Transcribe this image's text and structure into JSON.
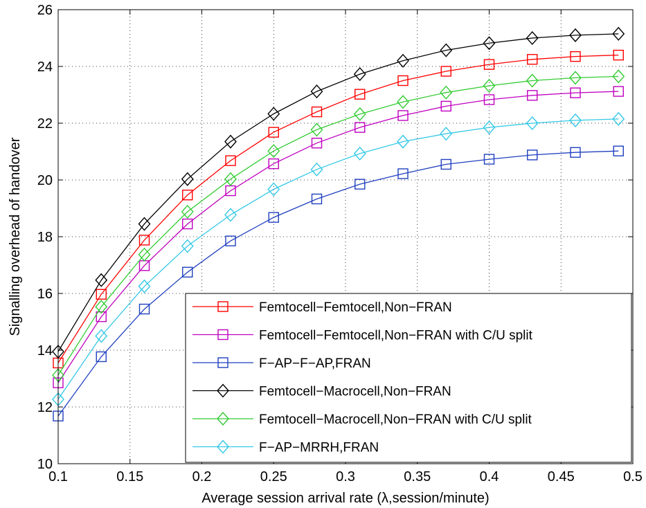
{
  "chart_data": {
    "type": "line",
    "title": "",
    "xlabel": "Average session arrival rate (λ,session/minute)",
    "ylabel": "Signalling overhead of handover",
    "xlim": [
      0.1,
      0.5
    ],
    "ylim": [
      10,
      26
    ],
    "xticks": [
      0.1,
      0.15,
      0.2,
      0.25,
      0.3,
      0.35,
      0.4,
      0.45,
      0.5
    ],
    "xtick_labels": [
      "0.1",
      "0.15",
      "0.2",
      "0.25",
      "0.3",
      "0.35",
      "0.4",
      "0.45",
      "0.5"
    ],
    "yticks": [
      10,
      12,
      14,
      16,
      18,
      20,
      22,
      24,
      26
    ],
    "ytick_labels": [
      "10",
      "12",
      "14",
      "16",
      "18",
      "20",
      "22",
      "24",
      "26"
    ],
    "grid": true,
    "legend_position": "bottom-right",
    "x": [
      0.1,
      0.13,
      0.16,
      0.19,
      0.22,
      0.25,
      0.28,
      0.31,
      0.34,
      0.37,
      0.4,
      0.43,
      0.46,
      0.49
    ],
    "series": [
      {
        "name": "Femtocell−Femtocell,Non−FRAN",
        "color": "#ff0000",
        "marker": "square",
        "values": [
          13.55,
          15.97,
          17.88,
          19.47,
          20.68,
          21.68,
          22.4,
          23.02,
          23.5,
          23.83,
          24.07,
          24.25,
          24.35,
          24.4
        ]
      },
      {
        "name": "Femtocell−Femtocell,Non−FRAN with C/U split",
        "color": "#bf00bf",
        "marker": "square",
        "values": [
          12.85,
          15.18,
          16.98,
          18.45,
          19.62,
          20.57,
          21.3,
          21.85,
          22.27,
          22.6,
          22.83,
          22.98,
          23.07,
          23.12
        ]
      },
      {
        "name": "F−AP−F−AP,FRAN",
        "color": "#1f3fbf",
        "marker": "square",
        "values": [
          11.68,
          13.77,
          15.45,
          16.75,
          17.85,
          18.68,
          19.33,
          19.85,
          20.22,
          20.55,
          20.73,
          20.88,
          20.97,
          21.02
        ]
      },
      {
        "name": "Femtocell−Macrocell,Non−FRAN",
        "color": "#000000",
        "marker": "diamond",
        "values": [
          13.95,
          16.47,
          18.45,
          20.03,
          21.35,
          22.33,
          23.12,
          23.73,
          24.2,
          24.57,
          24.82,
          25.0,
          25.1,
          25.15
        ]
      },
      {
        "name": "Femtocell−Macrocell,Non−FRAN with C/U split",
        "color": "#33cc33",
        "marker": "diamond",
        "values": [
          13.12,
          15.53,
          17.37,
          18.88,
          20.03,
          21.02,
          21.77,
          22.32,
          22.75,
          23.08,
          23.32,
          23.5,
          23.6,
          23.65
        ]
      },
      {
        "name": "F−AP−MRRH,FRAN",
        "color": "#33c8e6",
        "marker": "diamond",
        "values": [
          12.27,
          14.5,
          16.25,
          17.67,
          18.77,
          19.67,
          20.37,
          20.93,
          21.35,
          21.63,
          21.85,
          22.0,
          22.1,
          22.15
        ]
      }
    ]
  }
}
